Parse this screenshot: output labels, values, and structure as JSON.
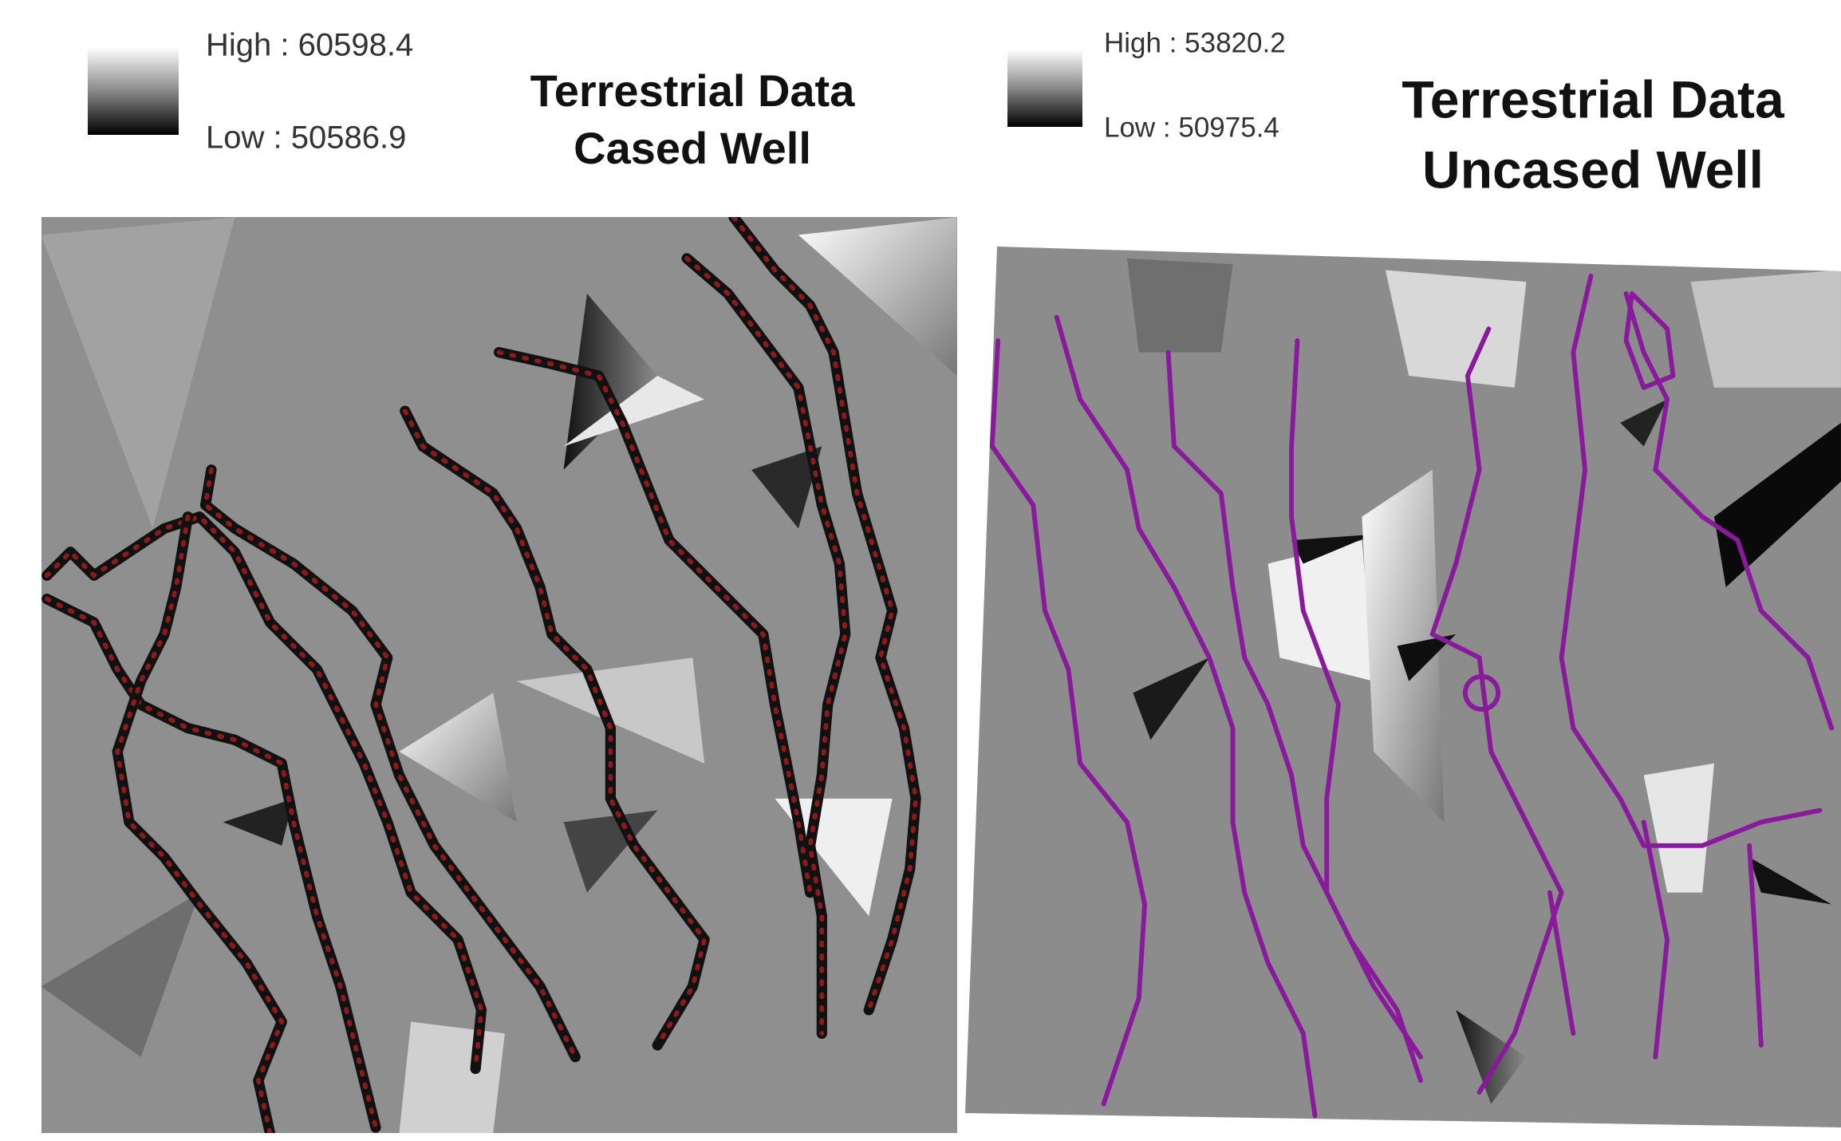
{
  "panels": [
    {
      "legend": {
        "high": "High : 60598.4",
        "low": "Low : 50586.9"
      },
      "title": [
        "Terrestrial Data",
        "Cased Well"
      ]
    },
    {
      "legend": {
        "high": "High : 53820.2",
        "low": "Low : 50975.4"
      },
      "title": [
        "Terrestrial Data",
        "Uncased Well"
      ]
    }
  ]
}
